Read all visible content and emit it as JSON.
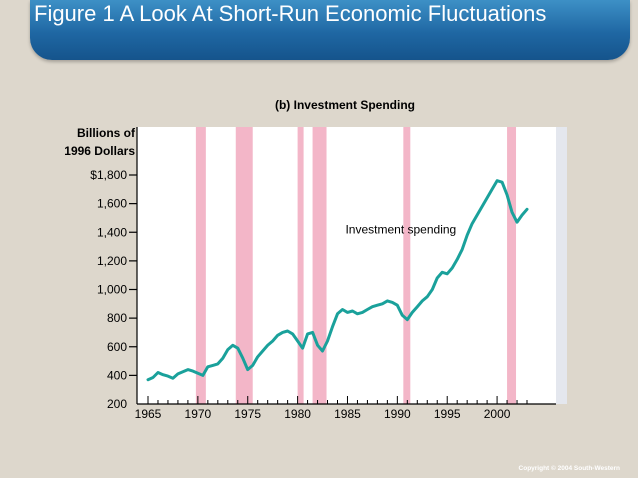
{
  "slide": {
    "title": "Figure 1 A Look At Short-Run Economic Fluctuations",
    "copyright": "Copyright © 2004  South-Western"
  },
  "colors": {
    "background": "#ddd7cc",
    "title_bar": "#1f67a3",
    "series_line": "#1aa19b",
    "recession_band": "#f3b6c8",
    "plot_background": "#ffffff"
  },
  "chart_data": {
    "type": "line",
    "title": "(b) Investment Spending",
    "ylabel": "Billions of\n1996 Dollars",
    "xlabel": "",
    "xlim": [
      1963.8,
      2004.0
    ],
    "ylim": [
      200,
      2000
    ],
    "x_ticks": [
      1965,
      1970,
      1975,
      1980,
      1985,
      1990,
      1995,
      2000
    ],
    "x_tick_labels": [
      "1965",
      "1970",
      "1975",
      "1980",
      "1985",
      "1990",
      "1995",
      "2000"
    ],
    "y_ticks": [
      200,
      400,
      600,
      800,
      1000,
      1200,
      1400,
      1600,
      1800
    ],
    "y_tick_labels": [
      "200",
      "400",
      "600",
      "800",
      "1,000",
      "1,200",
      "1,400",
      "1,600",
      "$1,800"
    ],
    "annotation": {
      "text": "Investment spending",
      "x": 1984.8,
      "y": 1420
    },
    "recessions": [
      [
        1969.8,
        1970.8
      ],
      [
        1973.8,
        1975.5
      ],
      [
        1980.0,
        1980.6
      ],
      [
        1981.5,
        1982.9
      ],
      [
        1990.6,
        1991.3
      ],
      [
        2001.0,
        2001.9
      ]
    ],
    "series": [
      {
        "name": "Investment spending",
        "x": [
          1965.0,
          1965.5,
          1966.0,
          1966.5,
          1967.0,
          1967.5,
          1968.0,
          1968.5,
          1969.0,
          1969.5,
          1970.0,
          1970.5,
          1971.0,
          1971.5,
          1972.0,
          1972.5,
          1973.0,
          1973.5,
          1974.0,
          1974.5,
          1975.0,
          1975.5,
          1976.0,
          1976.5,
          1977.0,
          1977.5,
          1978.0,
          1978.5,
          1979.0,
          1979.5,
          1980.0,
          1980.5,
          1981.0,
          1981.5,
          1982.0,
          1982.5,
          1983.0,
          1983.5,
          1984.0,
          1984.5,
          1985.0,
          1985.5,
          1986.0,
          1986.5,
          1987.0,
          1987.5,
          1988.0,
          1988.5,
          1989.0,
          1989.5,
          1990.0,
          1990.5,
          1991.0,
          1991.5,
          1992.0,
          1992.5,
          1993.0,
          1993.5,
          1994.0,
          1994.5,
          1995.0,
          1995.5,
          1996.0,
          1996.5,
          1997.0,
          1997.5,
          1998.0,
          1998.5,
          1999.0,
          1999.5,
          2000.0,
          2000.5,
          2001.0,
          2001.5,
          2002.0,
          2002.5,
          2003.0
        ],
        "values": [
          370,
          385,
          420,
          405,
          395,
          380,
          410,
          425,
          440,
          430,
          415,
          400,
          460,
          470,
          480,
          520,
          580,
          610,
          590,
          520,
          440,
          470,
          530,
          570,
          610,
          640,
          680,
          700,
          710,
          690,
          640,
          590,
          690,
          700,
          610,
          570,
          640,
          740,
          830,
          860,
          840,
          850,
          830,
          840,
          860,
          880,
          890,
          900,
          920,
          910,
          890,
          820,
          790,
          840,
          880,
          920,
          950,
          1000,
          1080,
          1120,
          1110,
          1150,
          1210,
          1280,
          1380,
          1460,
          1520,
          1580,
          1640,
          1700,
          1760,
          1750,
          1660,
          1540,
          1470,
          1520,
          1560
        ]
      }
    ]
  }
}
